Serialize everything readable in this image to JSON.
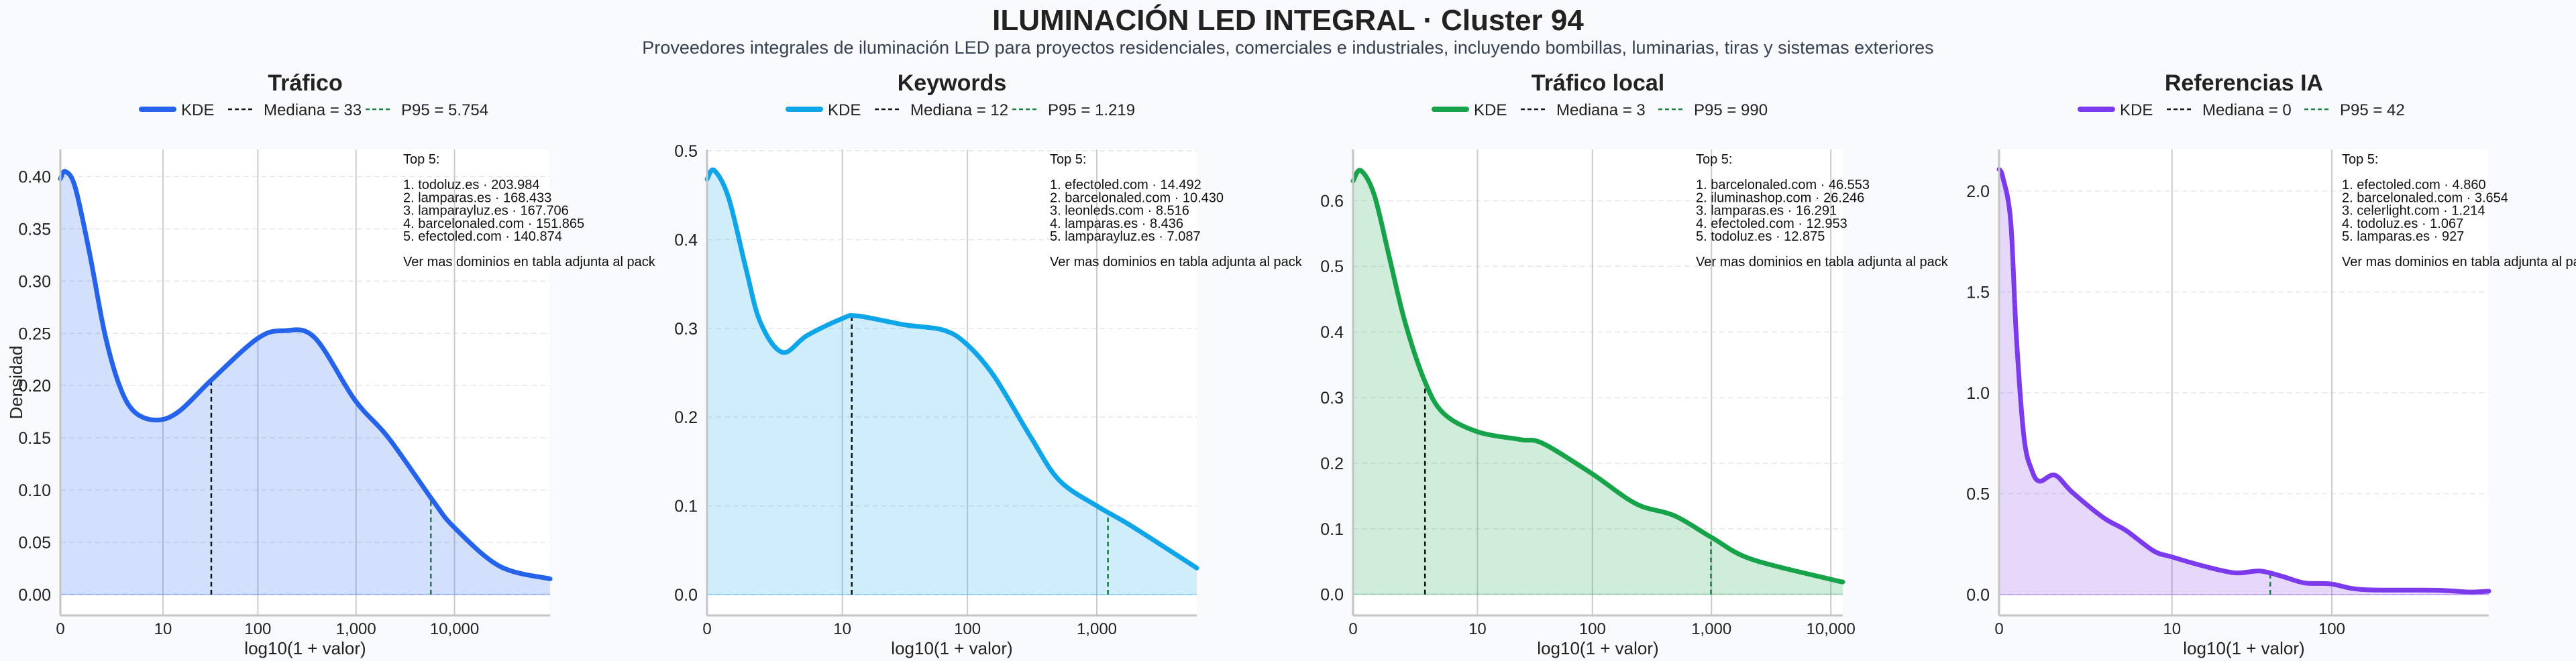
{
  "header": {
    "title": "ILUMINACIÓN LED INTEGRAL · Cluster 94",
    "subtitle": "Proveedores integrales de iluminación LED para proyectos residenciales, comerciales e industriales, incluyendo bombillas, luminarias, tiras y sistemas exteriores"
  },
  "colors": {
    "background": "#f8fafc",
    "plot_background": "#ffffff",
    "median_line": "#111111",
    "p95_line": "#15803d",
    "grid": "#cccccc"
  },
  "chart_data": [
    {
      "type": "area",
      "title": "Tráfico",
      "xlabel": "log10(1 + valor)",
      "ylabel": "Densidad",
      "color": "#2563eb",
      "xlim": [
        0,
        4.97
      ],
      "ylim": [
        -0.02,
        0.426
      ],
      "x_ticks": [
        {
          "value": 0,
          "label": "0"
        },
        {
          "value": 10,
          "label": "10"
        },
        {
          "value": 100,
          "label": "100"
        },
        {
          "value": 1000,
          "label": "1,000"
        },
        {
          "value": 10000,
          "label": "10,000"
        }
      ],
      "y_ticks": [
        {
          "value": 0,
          "label": "0.00"
        },
        {
          "value": 0.05,
          "label": "0.05"
        },
        {
          "value": 0.1,
          "label": "0.10"
        },
        {
          "value": 0.15,
          "label": "0.15"
        },
        {
          "value": 0.2,
          "label": "0.20"
        },
        {
          "value": 0.25,
          "label": "0.25"
        },
        {
          "value": 0.3,
          "label": "0.30"
        },
        {
          "value": 0.35,
          "label": "0.35"
        },
        {
          "value": 0.4,
          "label": "0.40"
        }
      ],
      "grid": true,
      "legend": {
        "placement": "top-center",
        "kde_label": "KDE",
        "median_label": "Mediana = 33",
        "p95_label": "P95 = 5.754"
      },
      "median": 33,
      "p95": 5754,
      "series": [
        {
          "name": "KDE",
          "points": [
            [
              0,
              0.398
            ],
            [
              0.05,
              0.405
            ],
            [
              0.15,
              0.39
            ],
            [
              0.3,
              0.325
            ],
            [
              0.45,
              0.25
            ],
            [
              0.6,
              0.2
            ],
            [
              0.75,
              0.175
            ],
            [
              0.97,
              0.167
            ],
            [
              1.2,
              0.175
            ],
            [
              1.54,
              0.206
            ],
            [
              2.0,
              0.245
            ],
            [
              2.27,
              0.2525
            ],
            [
              2.58,
              0.246
            ],
            [
              2.99,
              0.186
            ],
            [
              3.33,
              0.15
            ],
            [
              3.78,
              0.09
            ],
            [
              4.0,
              0.064
            ],
            [
              4.46,
              0.027
            ],
            [
              4.97,
              0.015
            ]
          ]
        }
      ],
      "annotation": {
        "heading": "Top 5:",
        "items": [
          "1. todoluz.es · 203.984",
          "2. lamparas.es · 168.433",
          "3. lamparayluz.es · 167.706",
          "4. barcelonaled.com · 151.865",
          "5. efectoled.com · 140.874"
        ],
        "footer": "Ver mas dominios en tabla adjunta al pack"
      }
    },
    {
      "type": "area",
      "title": "Keywords",
      "xlabel": "log10(1 + valor)",
      "ylabel": "",
      "color": "#0ea5e9",
      "xlim": [
        0,
        3.77
      ],
      "ylim": [
        -0.0234,
        0.5015
      ],
      "x_ticks": [
        {
          "value": 0,
          "label": "0"
        },
        {
          "value": 10,
          "label": "10"
        },
        {
          "value": 100,
          "label": "100"
        },
        {
          "value": 1000,
          "label": "1,000"
        }
      ],
      "y_ticks": [
        {
          "value": 0,
          "label": "0.0"
        },
        {
          "value": 0.1,
          "label": "0.1"
        },
        {
          "value": 0.2,
          "label": "0.2"
        },
        {
          "value": 0.3,
          "label": "0.3"
        },
        {
          "value": 0.4,
          "label": "0.4"
        },
        {
          "value": 0.5,
          "label": "0.5"
        }
      ],
      "grid": true,
      "legend": {
        "placement": "top-center",
        "kde_label": "KDE",
        "median_label": "Mediana = 12",
        "p95_label": "P95 = 1.219"
      },
      "median": 12,
      "p95": 1219,
      "series": [
        {
          "name": "KDE",
          "points": [
            [
              0,
              0.468
            ],
            [
              0.055,
              0.478
            ],
            [
              0.166,
              0.447
            ],
            [
              0.3,
              0.367
            ],
            [
              0.41,
              0.307
            ],
            [
              0.58,
              0.273
            ],
            [
              0.77,
              0.292
            ],
            [
              1.04,
              0.311
            ],
            [
              1.16,
              0.314
            ],
            [
              1.52,
              0.304
            ],
            [
              1.82,
              0.298
            ],
            [
              2.0,
              0.282
            ],
            [
              2.21,
              0.246
            ],
            [
              2.49,
              0.178
            ],
            [
              2.71,
              0.129
            ],
            [
              3.0,
              0.1
            ],
            [
              3.26,
              0.078
            ],
            [
              3.77,
              0.03
            ]
          ]
        }
      ],
      "annotation": {
        "heading": "Top 5:",
        "items": [
          "1. efectoled.com · 14.492",
          "2. barcelonaled.com · 10.430",
          "3. leonleds.com · 8.516",
          "4. lamparas.es · 8.436",
          "5. lamparayluz.es · 7.087"
        ],
        "footer": "Ver mas dominios en tabla adjunta al pack"
      }
    },
    {
      "type": "area",
      "title": "Tráfico local",
      "xlabel": "log10(1 + valor)",
      "ylabel": "",
      "color": "#16a34a",
      "xlim": [
        0,
        4.1
      ],
      "ylim": [
        -0.032,
        0.678
      ],
      "x_ticks": [
        {
          "value": 0,
          "label": "0"
        },
        {
          "value": 10,
          "label": "10"
        },
        {
          "value": 100,
          "label": "100"
        },
        {
          "value": 1000,
          "label": "1,000"
        },
        {
          "value": 10000,
          "label": "10,000"
        }
      ],
      "y_ticks": [
        {
          "value": 0,
          "label": "0.0"
        },
        {
          "value": 0.1,
          "label": "0.1"
        },
        {
          "value": 0.2,
          "label": "0.2"
        },
        {
          "value": 0.3,
          "label": "0.3"
        },
        {
          "value": 0.4,
          "label": "0.4"
        },
        {
          "value": 0.5,
          "label": "0.5"
        },
        {
          "value": 0.6,
          "label": "0.6"
        }
      ],
      "grid": true,
      "legend": {
        "placement": "top-center",
        "kde_label": "KDE",
        "median_label": "Mediana = 3",
        "p95_label": "P95 = 990"
      },
      "median": 3,
      "p95": 990,
      "series": [
        {
          "name": "KDE",
          "points": [
            [
              0,
              0.63
            ],
            [
              0.064,
              0.646
            ],
            [
              0.177,
              0.609
            ],
            [
              0.306,
              0.512
            ],
            [
              0.435,
              0.415
            ],
            [
              0.6,
              0.325
            ],
            [
              0.757,
              0.276
            ],
            [
              1.04,
              0.248
            ],
            [
              1.4,
              0.236
            ],
            [
              1.59,
              0.23
            ],
            [
              2.0,
              0.184
            ],
            [
              2.37,
              0.138
            ],
            [
              2.69,
              0.12
            ],
            [
              3.0,
              0.087
            ],
            [
              3.33,
              0.054
            ],
            [
              4.0,
              0.023
            ],
            [
              4.1,
              0.019
            ]
          ]
        }
      ],
      "annotation": {
        "heading": "Top 5:",
        "items": [
          "1. barcelonaled.com · 46.553",
          "2. iluminashop.com · 26.246",
          "3. lamparas.es · 16.291",
          "4. efectoled.com · 12.953",
          "5. todoluz.es · 12.875"
        ],
        "footer": "Ver mas dominios en tabla adjunta al pack"
      }
    },
    {
      "type": "area",
      "title": "Referencias IA",
      "xlabel": "log10(1 + valor)",
      "ylabel": "",
      "color": "#7c3aed",
      "xlim": [
        0,
        2.95
      ],
      "ylim": [
        -0.103,
        2.206
      ],
      "x_ticks": [
        {
          "value": 0,
          "label": "0"
        },
        {
          "value": 10,
          "label": "10"
        },
        {
          "value": 100,
          "label": "100"
        }
      ],
      "y_ticks": [
        {
          "value": 0,
          "label": "0.0"
        },
        {
          "value": 0.5,
          "label": "0.5"
        },
        {
          "value": 1.0,
          "label": "1.0"
        },
        {
          "value": 1.5,
          "label": "1.5"
        },
        {
          "value": 2.0,
          "label": "2.0"
        }
      ],
      "grid": true,
      "legend": {
        "placement": "top-center",
        "kde_label": "KDE",
        "median_label": "Mediana = 0",
        "p95_label": "P95 = 42"
      },
      "median": 0,
      "p95": 42,
      "series": [
        {
          "name": "KDE",
          "points": [
            [
              0,
              2.108
            ],
            [
              0.023,
              2.067
            ],
            [
              0.07,
              1.85
            ],
            [
              0.104,
              1.28
            ],
            [
              0.15,
              0.78
            ],
            [
              0.197,
              0.617
            ],
            [
              0.244,
              0.562
            ],
            [
              0.336,
              0.592
            ],
            [
              0.44,
              0.508
            ],
            [
              0.626,
              0.383
            ],
            [
              0.766,
              0.317
            ],
            [
              0.93,
              0.217
            ],
            [
              1.04,
              0.187
            ],
            [
              1.23,
              0.142
            ],
            [
              1.42,
              0.108
            ],
            [
              1.57,
              0.117
            ],
            [
              1.7,
              0.092
            ],
            [
              1.84,
              0.058
            ],
            [
              2.0,
              0.053
            ],
            [
              2.19,
              0.025
            ],
            [
              2.63,
              0.022
            ],
            [
              2.83,
              0.013
            ],
            [
              2.95,
              0.017
            ]
          ]
        }
      ],
      "annotation": {
        "heading": "Top 5:",
        "items": [
          "1. efectoled.com · 4.860",
          "2. barcelonaled.com · 3.654",
          "3. celerlight.com · 1.214",
          "4. todoluz.es · 1.067",
          "5. lamparas.es · 927"
        ],
        "footer": "Ver mas dominios en tabla adjunta al pack"
      }
    }
  ]
}
